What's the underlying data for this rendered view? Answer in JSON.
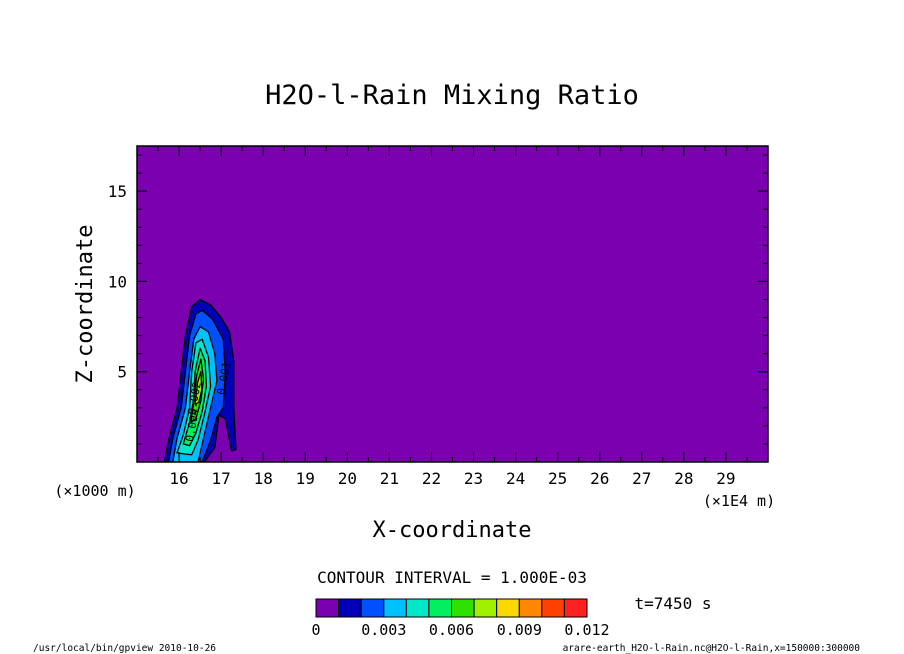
{
  "chart_data": {
    "type": "contour",
    "title": "H2O-l-Rain Mixing Ratio",
    "xlabel": "X-coordinate",
    "ylabel": "Z-coordinate",
    "x_unit_label": "(×1E4 m)",
    "y_unit_label": "(×1000 m)",
    "xlim": [
      15.0,
      30.0
    ],
    "ylim": [
      0.0,
      17.5
    ],
    "x_ticks": [
      16,
      17,
      18,
      19,
      20,
      21,
      22,
      23,
      24,
      25,
      26,
      27,
      28,
      29
    ],
    "y_ticks": [
      5,
      10,
      15
    ],
    "contour_interval_text": "CONTOUR INTERVAL = 1.000E-03",
    "time_label": "t=7450 s",
    "colorbar": {
      "levels": [
        0,
        0.001,
        0.002,
        0.003,
        0.004,
        0.005,
        0.006,
        0.007,
        0.008,
        0.009,
        0.01,
        0.011,
        0.012
      ],
      "tick_labels": [
        "0",
        "0.003",
        "0.006",
        "0.009",
        "0.012"
      ],
      "tick_values": [
        0,
        0.003,
        0.006,
        0.009,
        0.012
      ],
      "colors": [
        "#7a00b0",
        "#0000b8",
        "#0050ff",
        "#00c0ff",
        "#00e8c8",
        "#00f060",
        "#30e000",
        "#a0f000",
        "#ffd800",
        "#ff8800",
        "#ff4000",
        "#ff2020",
        "#ffa0a0"
      ]
    },
    "contour_labels": [
      {
        "text": "0.001",
        "x": 17.15,
        "z": 4.6
      },
      {
        "text": "0.002",
        "x": 16.45,
        "z": 3.5
      },
      {
        "text": "0.004",
        "x": 16.4,
        "z": 2.0
      }
    ],
    "field_blob": {
      "description_free": true,
      "levels": [
        {
          "level": 0,
          "pts": [
            [
              15.65,
              0
            ],
            [
              15.75,
              1.2
            ],
            [
              15.95,
              3
            ],
            [
              16.05,
              5
            ],
            [
              16.15,
              7
            ],
            [
              16.3,
              8.6
            ],
            [
              16.5,
              9.0
            ],
            [
              16.75,
              8.7
            ],
            [
              17.0,
              8.0
            ],
            [
              17.2,
              7.2
            ],
            [
              17.3,
              5.6
            ],
            [
              17.3,
              3.0
            ],
            [
              17.35,
              0.7
            ],
            [
              17.25,
              0.6
            ],
            [
              17.1,
              2.4
            ],
            [
              16.95,
              2.6
            ],
            [
              16.85,
              0.8
            ],
            [
              16.6,
              0
            ]
          ]
        },
        {
          "level": 1,
          "pts": [
            [
              15.75,
              0
            ],
            [
              15.85,
              1.3
            ],
            [
              16.05,
              3
            ],
            [
              16.15,
              5
            ],
            [
              16.25,
              7
            ],
            [
              16.4,
              8.2
            ],
            [
              16.55,
              8.4
            ],
            [
              16.8,
              7.9
            ],
            [
              17.05,
              6.8
            ],
            [
              17.1,
              5.0
            ],
            [
              17.05,
              3.0
            ],
            [
              16.9,
              2.5
            ],
            [
              16.75,
              1.2
            ],
            [
              16.55,
              0
            ]
          ]
        },
        {
          "level": 2,
          "pts": [
            [
              15.85,
              0
            ],
            [
              15.95,
              1.3
            ],
            [
              16.15,
              3
            ],
            [
              16.25,
              5
            ],
            [
              16.35,
              6.8
            ],
            [
              16.5,
              7.5
            ],
            [
              16.7,
              7.2
            ],
            [
              16.85,
              6.0
            ],
            [
              16.9,
              4.5
            ],
            [
              16.75,
              3.0
            ],
            [
              16.6,
              1.5
            ],
            [
              16.45,
              0
            ]
          ]
        },
        {
          "level": 3,
          "pts": [
            [
              15.95,
              0.5
            ],
            [
              16.1,
              1.5
            ],
            [
              16.25,
              3
            ],
            [
              16.3,
              5
            ],
            [
              16.4,
              6.6
            ],
            [
              16.55,
              6.8
            ],
            [
              16.7,
              5.8
            ],
            [
              16.75,
              4.2
            ],
            [
              16.6,
              2.6
            ],
            [
              16.45,
              1.2
            ],
            [
              16.3,
              0.4
            ]
          ]
        },
        {
          "level": 4,
          "pts": [
            [
              16.1,
              1.0
            ],
            [
              16.25,
              2.2
            ],
            [
              16.35,
              3.5
            ],
            [
              16.38,
              5
            ],
            [
              16.5,
              6.3
            ],
            [
              16.62,
              5.6
            ],
            [
              16.65,
              4.2
            ],
            [
              16.55,
              2.8
            ],
            [
              16.4,
              1.6
            ],
            [
              16.25,
              0.9
            ]
          ]
        },
        {
          "level": 5,
          "pts": [
            [
              16.28,
              2.2
            ],
            [
              16.36,
              3.5
            ],
            [
              16.42,
              4.8
            ],
            [
              16.52,
              5.7
            ],
            [
              16.58,
              4.6
            ],
            [
              16.52,
              3.4
            ],
            [
              16.4,
              2.4
            ]
          ]
        },
        {
          "level": 6,
          "pts": [
            [
              16.38,
              3.2
            ],
            [
              16.44,
              4.4
            ],
            [
              16.52,
              5.0
            ],
            [
              16.54,
              4.0
            ],
            [
              16.47,
              3.3
            ]
          ]
        }
      ]
    }
  },
  "footer": {
    "left": "/usr/local/bin/gpview  2010-10-26",
    "right": "arare-earth_H2O-l-Rain.nc@H2O-l-Rain,x=150000:300000"
  }
}
